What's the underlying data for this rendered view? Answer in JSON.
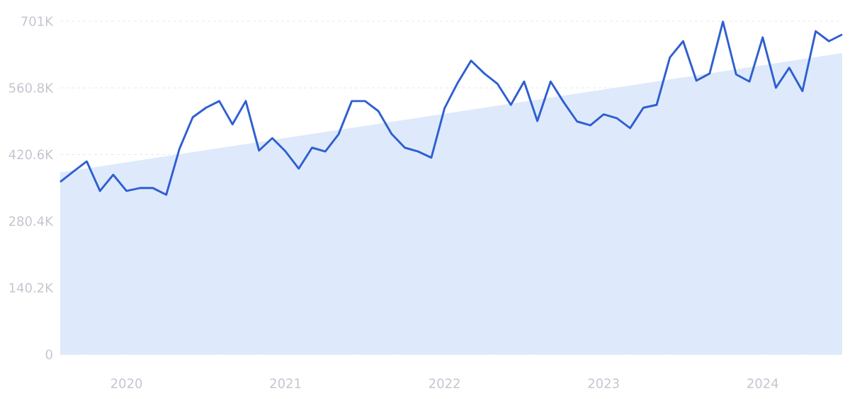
{
  "chart_data": {
    "type": "line",
    "x": [
      "2019-08",
      "2019-09",
      "2019-10",
      "2019-11",
      "2019-12",
      "2020-01",
      "2020-02",
      "2020-03",
      "2020-04",
      "2020-05",
      "2020-06",
      "2020-07",
      "2020-08",
      "2020-09",
      "2020-10",
      "2020-11",
      "2020-12",
      "2021-01",
      "2021-02",
      "2021-03",
      "2021-04",
      "2021-05",
      "2021-06",
      "2021-07",
      "2021-08",
      "2021-09",
      "2021-10",
      "2021-11",
      "2021-12",
      "2022-01",
      "2022-02",
      "2022-03",
      "2022-04",
      "2022-05",
      "2022-06",
      "2022-07",
      "2022-08",
      "2022-09",
      "2022-10",
      "2022-11",
      "2022-12",
      "2023-01",
      "2023-02",
      "2023-03",
      "2023-04",
      "2023-05",
      "2023-06",
      "2023-07",
      "2023-08",
      "2023-09",
      "2023-10",
      "2023-11",
      "2023-12",
      "2024-01",
      "2024-02",
      "2024-03",
      "2024-04",
      "2024-05",
      "2024-06",
      "2024-07"
    ],
    "series": [
      {
        "type": "area",
        "x": [
          "2019-08",
          "2024-07"
        ],
        "values": [
          383,
          634
        ],
        "color": "#deeafb"
      },
      {
        "color": "#2f5fd0",
        "values": [
          363,
          385,
          406,
          344,
          378,
          344,
          350,
          350,
          336,
          433,
          499,
          519,
          533,
          484,
          533,
          429,
          455,
          427,
          391,
          435,
          427,
          463,
          533,
          533,
          512,
          464,
          435,
          427,
          414,
          518,
          572,
          618,
          591,
          569,
          525,
          574,
          491,
          574,
          530,
          490,
          482,
          505,
          497,
          476,
          519,
          525,
          625,
          659,
          576,
          591,
          700,
          589,
          574,
          667,
          561,
          603,
          554,
          680,
          659,
          673
        ]
      }
    ],
    "xlim": [
      "2019-08",
      "2024-07"
    ],
    "xticks": [
      "2020",
      "2021",
      "2022",
      "2023",
      "2024"
    ],
    "ylim": [
      0,
      701
    ],
    "yticks": [
      0,
      {
        "value": 140.2,
        "label": "140.2K"
      },
      {
        "value": 280.4,
        "label": "280.4K"
      },
      {
        "value": 420.6,
        "label": "420.6K"
      },
      {
        "value": 560.8,
        "label": "560.8K"
      },
      {
        "value": 701,
        "label": "701K"
      }
    ],
    "grid": "y",
    "marker": "none",
    "line_style": "solid"
  }
}
